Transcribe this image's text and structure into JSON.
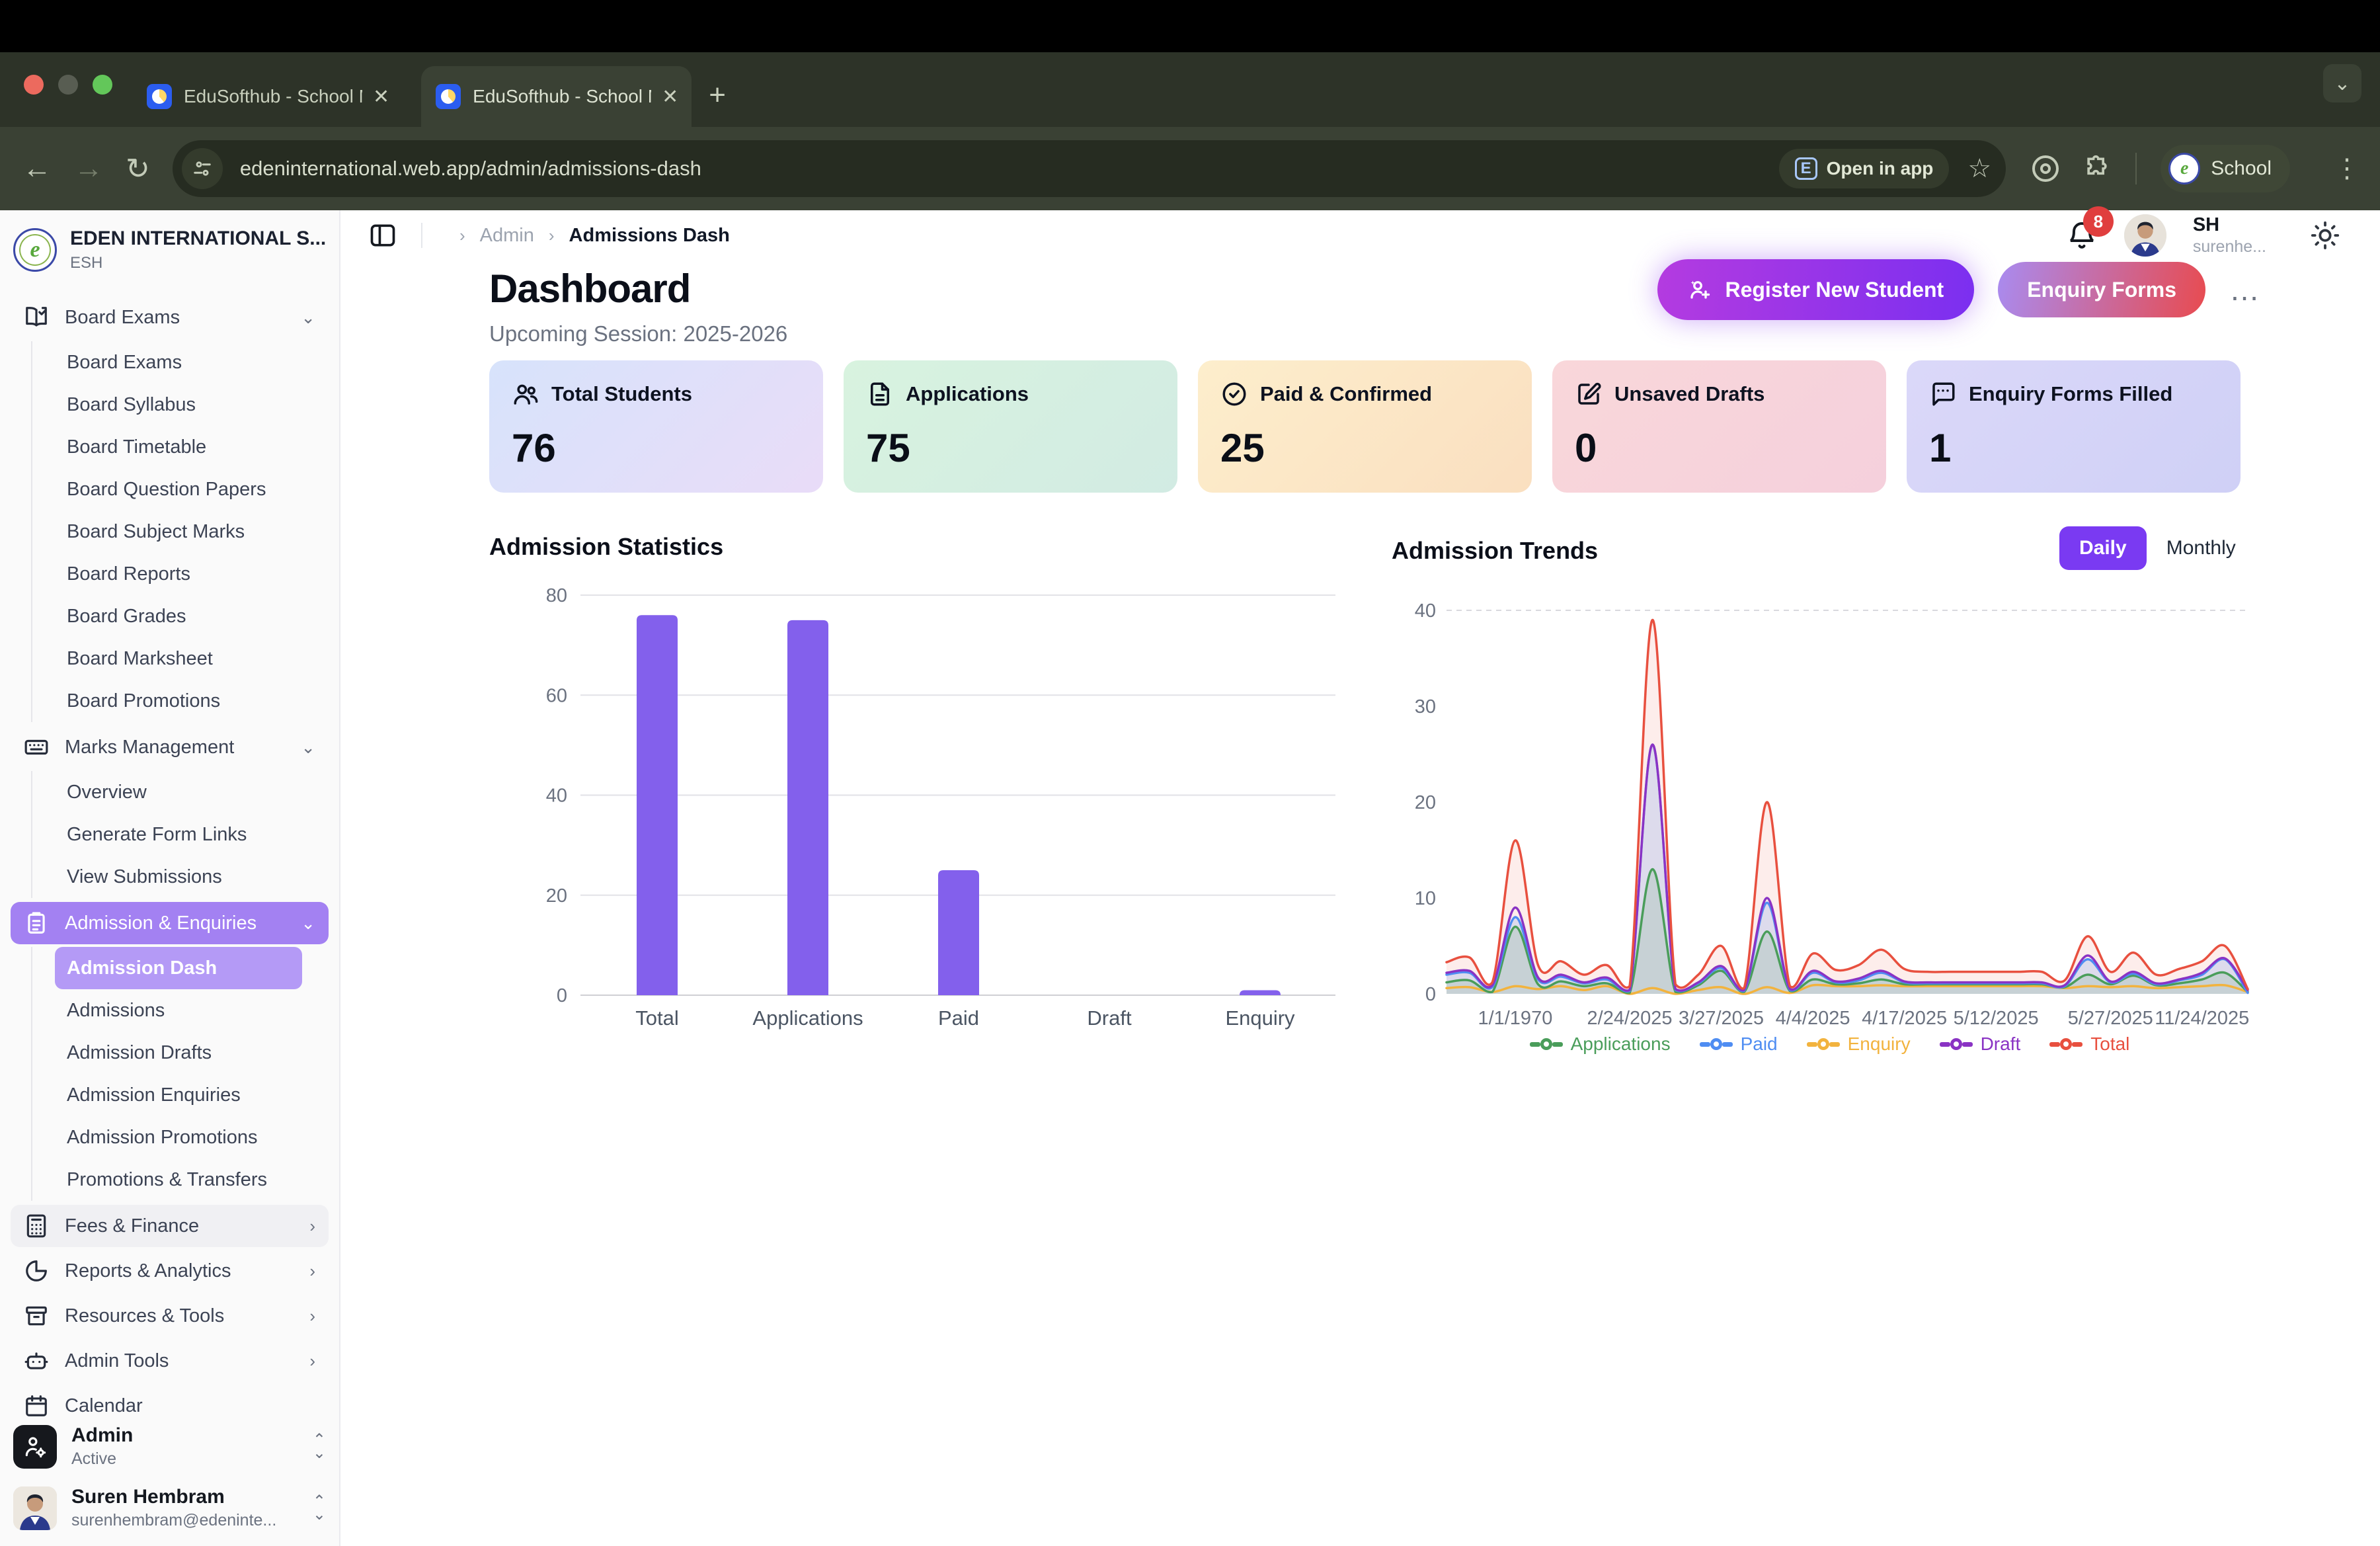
{
  "browser": {
    "tabs": [
      {
        "title": "EduSofthub - School Manage"
      },
      {
        "title": "EduSofthub - School Manage"
      }
    ],
    "url": "edeninternational.web.app/admin/admissions-dash",
    "open_in_app_label": "Open in app",
    "profile_label": "School"
  },
  "sidebar": {
    "org_name": "EDEN INTERNATIONAL S...",
    "org_short": "ESH",
    "groups": [
      {
        "label": "Board Exams",
        "icon": "book-open-check-icon",
        "children": [
          "Board Exams",
          "Board Syllabus",
          "Board Timetable",
          "Board Question Papers",
          "Board Subject Marks",
          "Board Reports",
          "Board Grades",
          "Board Marksheet",
          "Board Promotions"
        ]
      },
      {
        "label": "Marks Management",
        "icon": "keyboard-icon",
        "children": [
          "Overview",
          "Generate Form Links",
          "View Submissions"
        ]
      },
      {
        "label": "Admission & Enquiries",
        "icon": "clipboard-list-icon",
        "children": [
          "Admission Dash",
          "Admissions",
          "Admission Drafts",
          "Admission Enquiries",
          "Admission Promotions",
          "Promotions & Transfers"
        ]
      },
      {
        "label": "Fees & Finance",
        "icon": "calculator-icon"
      },
      {
        "label": "Reports & Analytics",
        "icon": "pie-chart-icon"
      },
      {
        "label": "Resources & Tools",
        "icon": "archive-icon"
      },
      {
        "label": "Admin Tools",
        "icon": "bot-icon"
      },
      {
        "label": "Calendar",
        "icon": "calendar-icon"
      }
    ],
    "admin_widget": {
      "title": "Admin",
      "status": "Active"
    },
    "user_widget": {
      "name": "Suren Hembram",
      "email": "surenhembram@edeninte..."
    }
  },
  "header": {
    "breadcrumb_section": "Admin",
    "breadcrumb_page": "Admissions Dash",
    "notification_count": "8",
    "user_initials": "SH",
    "user_name_truncated": "surenhe..."
  },
  "page": {
    "title": "Dashboard",
    "subtitle": "Upcoming Session: 2025-2026",
    "register_button": "Register New Student",
    "enquiry_button": "Enquiry Forms"
  },
  "stats": [
    {
      "label": "Total Students",
      "value": "76",
      "icon": "users-icon",
      "gradient": [
        "#d7e3fb",
        "#e9dcf8"
      ]
    },
    {
      "label": "Applications",
      "value": "75",
      "icon": "file-text-icon",
      "gradient": [
        "#d8f3df",
        "#d2ebe3"
      ]
    },
    {
      "label": "Paid & Confirmed",
      "value": "25",
      "icon": "check-circle-icon",
      "gradient": [
        "#fdeecc",
        "#fadfc0"
      ]
    },
    {
      "label": "Unsaved Drafts",
      "value": "0",
      "icon": "edit-icon",
      "gradient": [
        "#f9d7da",
        "#f5d0dc"
      ]
    },
    {
      "label": "Enquiry Forms Filled",
      "value": "1",
      "icon": "message-square-icon",
      "gradient": [
        "#dbd8f9",
        "#cfd0f6"
      ]
    }
  ],
  "chart_data": [
    {
      "type": "bar",
      "title": "Admission Statistics",
      "categories": [
        "Total",
        "Applications",
        "Paid",
        "Draft",
        "Enquiry"
      ],
      "values": [
        76,
        75,
        25,
        0,
        1
      ],
      "xlabel": "",
      "ylabel": "",
      "ylim": [
        0,
        80
      ],
      "yticks": [
        0,
        20,
        40,
        60,
        80
      ],
      "grid": true,
      "bar_color": "#8360ec"
    },
    {
      "type": "line",
      "title": "Admission Trends",
      "controls": [
        "Daily",
        "Monthly"
      ],
      "active_control": "Daily",
      "ylim": [
        0,
        40
      ],
      "yticks": [
        0,
        10,
        20,
        30,
        40
      ],
      "grid": "dashed-top-only",
      "legend_position": "bottom",
      "x_tick_labels": [
        "1/1/1970",
        "2/24/2025",
        "3/27/2025",
        "4/4/2025",
        "4/17/2025",
        "5/12/2025",
        "5/27/2025",
        "11/24/2025"
      ],
      "x_tick_indices": [
        3,
        8,
        12,
        16,
        20,
        24,
        29,
        33
      ],
      "n_points": 36,
      "series": [
        {
          "name": "Applications",
          "color": "#4a9d5a",
          "fill": true,
          "values": [
            1.2,
            1.4,
            0.2,
            7,
            1.0,
            1.3,
            0.8,
            1.1,
            0.1,
            13,
            0.2,
            0.9,
            2.4,
            0.2,
            6.5,
            0.3,
            1.5,
            1.0,
            1.1,
            1.5,
            1.0,
            1.0,
            1.0,
            1.0,
            1.0,
            1.0,
            1.0,
            0.7,
            2.0,
            1.0,
            1.9,
            0.9,
            1.1,
            1.5,
            2.2,
            0.2
          ]
        },
        {
          "name": "Paid",
          "color": "#4f8df2",
          "fill": true,
          "values": [
            2.0,
            2.2,
            0.7,
            8,
            1.5,
            1.8,
            1.1,
            1.5,
            0.3,
            26,
            0.4,
            1.1,
            2.7,
            0.3,
            9.5,
            0.4,
            2.2,
            1.2,
            1.4,
            2.2,
            1.2,
            1.1,
            1.1,
            1.1,
            1.1,
            1.1,
            1.1,
            0.8,
            3.6,
            1.2,
            2.1,
            1.0,
            1.4,
            2.0,
            3.6,
            0.1
          ]
        },
        {
          "name": "Enquiry",
          "color": "#f2b33e",
          "fill": false,
          "values": [
            0.6,
            0.7,
            0.2,
            0.8,
            0.5,
            0.8,
            0.4,
            0.8,
            0.0,
            0.6,
            0.0,
            0.4,
            0.7,
            0.0,
            0.7,
            0.1,
            0.9,
            0.8,
            0.8,
            0.9,
            0.8,
            0.8,
            0.8,
            0.8,
            0.8,
            0.8,
            0.8,
            0.6,
            0.8,
            0.7,
            0.8,
            0.6,
            0.7,
            0.8,
            0.9,
            0.2
          ]
        },
        {
          "name": "Draft",
          "color": "#8a33c4",
          "fill": false,
          "values": [
            2.2,
            2.4,
            0.9,
            9,
            1.7,
            2.0,
            1.2,
            1.7,
            0.4,
            26,
            0.5,
            1.2,
            2.9,
            0.4,
            10,
            0.5,
            2.4,
            1.3,
            1.6,
            2.4,
            1.3,
            1.2,
            1.2,
            1.2,
            1.2,
            1.2,
            1.2,
            0.9,
            4.0,
            1.3,
            2.3,
            1.1,
            1.5,
            2.2,
            3.7,
            0.4
          ]
        },
        {
          "name": "Total",
          "color": "#e8503f",
          "fill": true,
          "values": [
            3.3,
            3.8,
            1.2,
            16,
            3.0,
            3.4,
            2.0,
            3.0,
            0.8,
            39,
            1.0,
            2.0,
            5.0,
            0.6,
            20,
            0.8,
            4.2,
            2.5,
            3.0,
            4.6,
            2.6,
            2.3,
            2.3,
            2.3,
            2.3,
            2.3,
            2.3,
            1.4,
            6.0,
            2.3,
            4.3,
            2.0,
            2.6,
            3.4,
            5.0,
            0.5
          ]
        }
      ]
    }
  ],
  "colors": {
    "accent_purple": "#8360ec",
    "active_nav": "#a381f2",
    "active_subnav": "#b49af6",
    "daily_button": "#7a3af2",
    "badge_red": "#e03e3e"
  }
}
